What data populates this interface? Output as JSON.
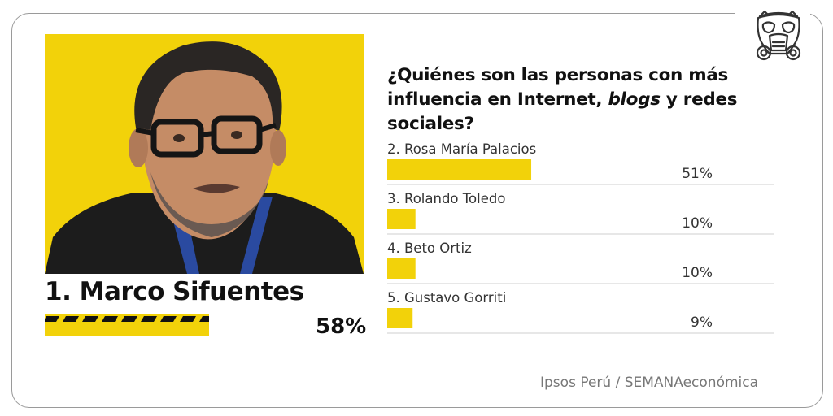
{
  "brand": {
    "logo_icon": "gas-mask-icon"
  },
  "question": {
    "line1": "¿Quiénes son las personas con más",
    "line2_pre": "influencia en Internet, ",
    "line2_em": "blogs",
    "line2_post": " y redes sociales?"
  },
  "winner": {
    "name": "1. Marco Sifuentes",
    "pct": "58%",
    "photo_icon": "person-portrait-photo"
  },
  "source": "Ipsos Perú / SEMANAeconómica",
  "colors": {
    "accent": "#f2d20a",
    "stripe": "#111111",
    "divider": "#cfcfcf",
    "text": "#1a1a1a"
  },
  "chart_data": {
    "type": "bar",
    "title": "¿Quiénes son las personas con más influencia en Internet, blogs y redes sociales?",
    "categories": [
      "1. Marco Sifuentes",
      "2. Rosa María Palacios",
      "3. Rolando Toledo",
      "4. Beto Ortiz",
      "5. Gustavo Gorriti"
    ],
    "values": [
      58,
      51,
      10,
      10,
      9
    ],
    "labels": [
      "58%",
      "51%",
      "10%",
      "10%",
      "9%"
    ],
    "unit": "%",
    "orientation": "horizontal",
    "source": "Ipsos Perú / SEMANAeconómica"
  }
}
